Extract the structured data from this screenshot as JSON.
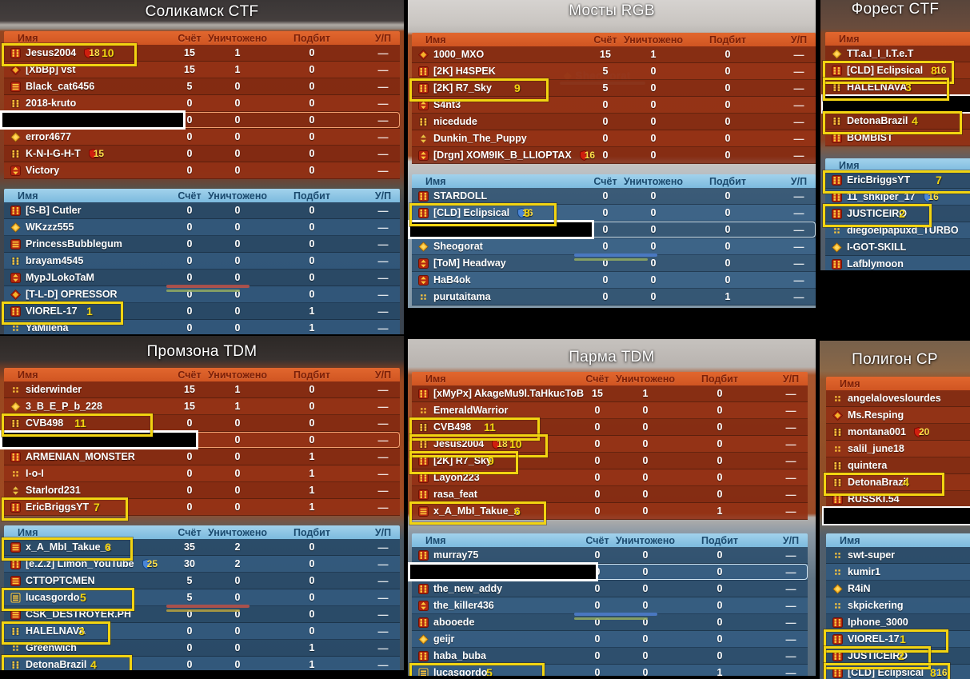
{
  "columns": [
    "Имя",
    "Счёт",
    "Уничтожено",
    "Подбит",
    "У/П"
  ],
  "kd_dash": "—",
  "colors": {
    "red_header": "#d95b28",
    "red_row": "#8a2c12",
    "blue_header": "#8ac4e6",
    "blue_row": "#2e5880",
    "annotation_yellow": "#f2d411",
    "badge_red": "#d01e0e",
    "badge_blue": "#4a86d8",
    "censor_black": "#000000"
  },
  "background_nameplate": {
    "name": "Sheogorat"
  },
  "panels": [
    {
      "title": "Соликамск CTF",
      "red": [
        {
          "i": "red-dots",
          "n": "Jesus2004",
          "b": [
            "18",
            "red"
          ],
          "m": [
            "10",
            163,
            122
          ],
          "v": [
            "15",
            "1",
            "0"
          ]
        },
        {
          "i": "red-diamond",
          "n": "[XbBp] vst",
          "v": [
            "15",
            "1",
            "0"
          ]
        },
        {
          "i": "red-grill",
          "n": "Black_cat6456",
          "v": [
            "5",
            "0",
            "0"
          ]
        },
        {
          "i": "gold-dots",
          "n": "2018-kruto",
          "v": [
            "0",
            "0",
            "0"
          ]
        },
        {
          "c": 232,
          "s": true,
          "v": [
            "0",
            "0",
            "0"
          ]
        },
        {
          "i": "gold-diamond",
          "n": "error4677",
          "v": [
            "0",
            "0",
            "0"
          ]
        },
        {
          "i": "gold-dots",
          "n": "K-N-I-G-H-T",
          "b": [
            "15",
            "red"
          ],
          "v": [
            "0",
            "0",
            "0"
          ]
        },
        {
          "i": "red-arrows",
          "n": "Victory",
          "v": [
            "0",
            "0",
            "0"
          ]
        }
      ],
      "blue": [
        {
          "i": "red-dots",
          "n": "[S-B] Cutler",
          "v": [
            "0",
            "0",
            "0"
          ]
        },
        {
          "i": "gold-diamond",
          "n": "WKzzz555",
          "v": [
            "0",
            "0",
            "0"
          ]
        },
        {
          "i": "red-grill",
          "n": "PrincessBubblegum",
          "v": [
            "0",
            "0",
            "0"
          ]
        },
        {
          "i": "gold-dots",
          "n": "brayam4545",
          "v": [
            "0",
            "0",
            "0"
          ]
        },
        {
          "i": "red-arrows",
          "n": "MypJLokoTaM",
          "v": [
            "0",
            "0",
            "0"
          ]
        },
        {
          "i": "red-diamond",
          "n": "[T-L-D] OPRESSOR",
          "v": [
            "0",
            "0",
            "0"
          ],
          "h": "red-green"
        },
        {
          "i": "red-dots",
          "n": "VIOREL-17",
          "m": [
            "1",
            146,
            103
          ],
          "v": [
            "0",
            "0",
            "1"
          ]
        },
        {
          "i": "gold-dots-sm",
          "n": "YaMilena",
          "v": [
            "0",
            "0",
            "1"
          ]
        }
      ]
    },
    {
      "title": "Мосты RGB",
      "red": [
        {
          "i": "red-diamond",
          "n": "1000_MXO",
          "v": [
            "15",
            "1",
            "0"
          ]
        },
        {
          "i": "red-dots",
          "n": "[2K] H4SPEK",
          "v": [
            "5",
            "0",
            "0"
          ]
        },
        {
          "i": "red-dots",
          "n": "[2K] R7_Sky",
          "m": [
            "9",
            168,
            128
          ],
          "v": [
            "5",
            "0",
            "0"
          ]
        },
        {
          "i": "red-arrows",
          "n": "S4nt3",
          "v": [
            "0",
            "0",
            "0"
          ]
        },
        {
          "i": "gold-dots",
          "n": "nicedude",
          "v": [
            "0",
            "0",
            "0"
          ]
        },
        {
          "i": "gold-arrows",
          "n": "Dunkin_The_Puppy",
          "v": [
            "0",
            "0",
            "0"
          ]
        },
        {
          "i": "red-arrows",
          "n": "[Drgn] XOM9IK_B_LLIOPTAX",
          "b": [
            "16",
            "red"
          ],
          "v": [
            "0",
            "0",
            "0"
          ]
        }
      ],
      "blue": [
        {
          "i": "red-dots",
          "n": "STARDOLL",
          "v": [
            "0",
            "0",
            "0"
          ]
        },
        {
          "i": "red-dots",
          "n": "[CLD] Eclipsical",
          "b": [
            "16",
            "blue"
          ],
          "m": [
            "8",
            178,
            140
          ],
          "v": [
            "0",
            "0",
            "0"
          ]
        },
        {
          "c": 233,
          "s": true,
          "v": [
            "0",
            "0",
            "0"
          ]
        },
        {
          "i": "gold-diamond",
          "n": "Sheogorat",
          "v": [
            "0",
            "0",
            "0"
          ]
        },
        {
          "i": "red-arrows",
          "n": "[ToM] Headway",
          "v": [
            "0",
            "0",
            "0"
          ],
          "h": "blue-green"
        },
        {
          "i": "red-arrows",
          "n": "HaB4ok",
          "v": [
            "0",
            "0",
            "0"
          ]
        },
        {
          "i": "gold-dots-sm",
          "n": "purutaitama",
          "v": [
            "0",
            "0",
            "1"
          ]
        }
      ]
    },
    {
      "title": "Форест CTF",
      "narrow": true,
      "red": [
        {
          "i": "gold-diamond",
          "n": "TT.a.I_I_I.T.e.T"
        },
        {
          "i": "red-dots",
          "n": "[CLD] Eclipsical",
          "b": [
            "16",
            "red"
          ],
          "m": [
            "8",
            158,
            132
          ]
        },
        {
          "i": "gold-dots",
          "n": "HALELNAVA",
          "m": [
            "3",
            152,
            100
          ]
        },
        {
          "c": "full"
        },
        {
          "i": "gold-dots",
          "n": "DetonaBrazil",
          "m": [
            "4",
            168,
            108
          ]
        },
        {
          "i": "red-dots",
          "n": "BOMBIST"
        }
      ],
      "blue": [
        {
          "i": "red-dots",
          "n": "EricBriggsYT",
          "m": [
            "7",
            182,
            138
          ]
        },
        {
          "i": "red-dots",
          "n": "11_shkiper_17",
          "b": [
            "16",
            "blue"
          ]
        },
        {
          "i": "red-dots",
          "n": "JUSTICEIRO",
          "m": [
            "2",
            130,
            92
          ]
        },
        {
          "i": "gold-dots-sm",
          "n": "diegoelpapuxd_TURBO"
        },
        {
          "i": "gold-diamond",
          "n": "I-GOT-SKILL"
        },
        {
          "i": "red-dots",
          "n": "Lafblymoon"
        }
      ]
    },
    {
      "title": "Промзона TDM",
      "red": [
        {
          "i": "gold-dots-sm",
          "n": "siderwinder",
          "v": [
            "15",
            "1",
            "0"
          ]
        },
        {
          "i": "gold-diamond",
          "n": "3_B_E_P_b_228",
          "v": [
            "15",
            "1",
            "0"
          ]
        },
        {
          "i": "gold-dots",
          "n": "CVB498",
          "m": [
            "11",
            183,
            88
          ],
          "v": [
            "0",
            "0",
            "0"
          ]
        },
        {
          "c": 248,
          "s": true,
          "v": [
            "",
            "0",
            "0"
          ]
        },
        {
          "i": "red-dots",
          "n": "ARMENIAN_MONSTER",
          "v": [
            "0",
            "0",
            "1"
          ]
        },
        {
          "i": "gold-dots-sm",
          "n": "I-o-I",
          "v": [
            "0",
            "0",
            "1"
          ]
        },
        {
          "i": "gold-arrows",
          "n": "Starlord231",
          "v": [
            "0",
            "0",
            "1"
          ]
        },
        {
          "i": "red-dots",
          "n": "EricBriggsYT",
          "m": [
            "7",
            152,
            112
          ],
          "v": [
            "0",
            "0",
            "1"
          ]
        }
      ],
      "blue": [
        {
          "i": "red-grill",
          "n": "x_A_MbI_Takue_x",
          "m": [
            "6",
            158,
            126
          ],
          "v": [
            "35",
            "2",
            "0"
          ]
        },
        {
          "i": "red-dots",
          "n": "[e.Z.z] Limon_YouTube",
          "b": [
            "25",
            "blue"
          ],
          "v": [
            "30",
            "2",
            "0"
          ]
        },
        {
          "i": "red-grill",
          "n": "CTTOPTCMEN",
          "v": [
            "5",
            "0",
            "0"
          ]
        },
        {
          "i": "gold-grill",
          "n": "lucasgordo",
          "m": [
            "5",
            160,
            95
          ],
          "v": [
            "5",
            "0",
            "0"
          ]
        },
        {
          "i": "red-grill",
          "n": "CSK_DESTROYER.PH",
          "v": [
            "0",
            "0",
            "0"
          ],
          "h": "red-yellow"
        },
        {
          "i": "gold-dots",
          "n": "HALELNAVA",
          "m": [
            "3",
            130,
            93
          ],
          "v": [
            "0",
            "0",
            "0"
          ]
        },
        {
          "i": "gold-dots-sm",
          "n": "Greenwich",
          "v": [
            "0",
            "0",
            "1"
          ]
        },
        {
          "i": "gold-dots",
          "n": "DetonaBrazil",
          "m": [
            "4",
            157,
            108
          ],
          "v": [
            "0",
            "0",
            "1"
          ]
        }
      ]
    },
    {
      "title": "Парма TDM",
      "red": [
        {
          "i": "red-dots",
          "n": "[xMyPx] AkageMu9l.TaHkucToB",
          "v": [
            "15",
            "1",
            "0"
          ]
        },
        {
          "i": "gold-dots-sm",
          "n": "EmeraldWarrior",
          "v": [
            "0",
            "0",
            "0"
          ]
        },
        {
          "i": "gold-dots",
          "n": "CVB498",
          "m": [
            "11",
            157,
            90
          ],
          "v": [
            "0",
            "0",
            "0"
          ]
        },
        {
          "i": "gold-dots",
          "n": "Jesus2004",
          "b": [
            "18",
            "red"
          ],
          "m": [
            "10",
            167,
            122
          ],
          "v": [
            "0",
            "0",
            "0"
          ]
        },
        {
          "i": "red-dots",
          "n": "[2K] R7_Sky",
          "m": [
            "9",
            130,
            95
          ],
          "v": [
            "0",
            "0",
            "0"
          ]
        },
        {
          "i": "red-dots",
          "n": "Layon223",
          "v": [
            "0",
            "0",
            "0"
          ]
        },
        {
          "i": "red-dots",
          "n": "rasa_feat",
          "v": [
            "0",
            "0",
            "0"
          ]
        },
        {
          "i": "red-grill",
          "n": "x_A_MbI_Takue_x",
          "m": [
            "6",
            165,
            128
          ],
          "v": [
            "0",
            "0",
            "1"
          ]
        }
      ],
      "blue": [
        {
          "i": "red-dots",
          "n": "murray75",
          "v": [
            "0",
            "0",
            "0"
          ]
        },
        {
          "c": 238,
          "s": true,
          "v": [
            "0",
            "0",
            "0"
          ]
        },
        {
          "i": "red-dots",
          "n": "the_new_addy",
          "v": [
            "0",
            "0",
            "0"
          ]
        },
        {
          "i": "red-arrows",
          "n": "the_killer436",
          "v": [
            "0",
            "0",
            "0"
          ]
        },
        {
          "i": "red-dots",
          "n": "abooede",
          "v": [
            "0",
            "0",
            "0"
          ],
          "h": "blue-green"
        },
        {
          "i": "gold-diamond",
          "n": "geijr",
          "v": [
            "0",
            "0",
            "0"
          ]
        },
        {
          "i": "red-dots",
          "n": "haba_buba",
          "v": [
            "0",
            "0",
            "0"
          ]
        },
        {
          "i": "gold-grill",
          "n": "lucasgordo",
          "m": [
            "5",
            163,
            93
          ],
          "v": [
            "0",
            "0",
            "1"
          ]
        }
      ]
    },
    {
      "title": "Полигон CP",
      "narrow": true,
      "red": [
        {
          "i": "gold-dots-sm",
          "n": "angelaloveslourdes"
        },
        {
          "i": "red-diamond",
          "n": "Ms.Resping"
        },
        {
          "i": "gold-dots",
          "n": "montana001",
          "b": [
            "20",
            "red"
          ]
        },
        {
          "i": "gold-dots-sm",
          "n": "salil_june18"
        },
        {
          "i": "gold-dots",
          "n": "quintera"
        },
        {
          "i": "gold-dots",
          "n": "DetonaBrazil",
          "m": [
            "4",
            145,
            96
          ]
        },
        {
          "i": "red-dots",
          "n": "RUSSKI.54"
        },
        {
          "c": "full"
        }
      ],
      "blue": [
        {
          "i": "gold-dots-sm",
          "n": "swt-super"
        },
        {
          "i": "gold-dots-sm",
          "n": "kumir1"
        },
        {
          "i": "gold-diamond",
          "n": "R4iN"
        },
        {
          "i": "gold-dots-sm",
          "n": "skpickering"
        },
        {
          "i": "red-dots",
          "n": "Iphone_3000"
        },
        {
          "i": "red-dots",
          "n": "VIOREL-17",
          "m": [
            "1",
            150,
            92
          ]
        },
        {
          "i": "red-dots",
          "n": "JUSTICEIRO",
          "m": [
            "2",
            128,
            90
          ]
        },
        {
          "i": "red-dots",
          "n": "[CLD] Eclipsical",
          "b": [
            "16",
            "blue"
          ],
          "m": [
            "8",
            152,
            130
          ]
        }
      ]
    }
  ]
}
